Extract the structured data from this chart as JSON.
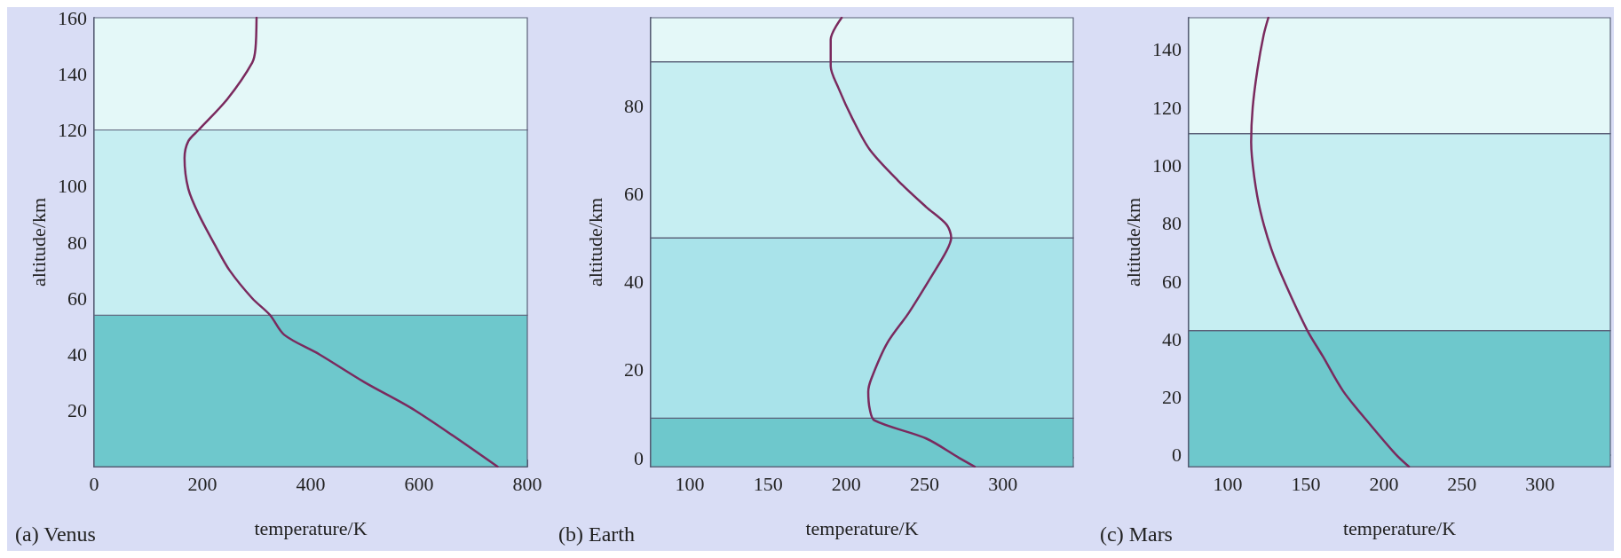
{
  "chart_data": [
    {
      "type": "line",
      "title": "(a) Venus",
      "xlabel": "temperature/K",
      "ylabel": "altitude/km",
      "xlim": [
        0,
        800
      ],
      "ylim": [
        0,
        160
      ],
      "xticks": [
        0,
        200,
        400,
        600,
        800
      ],
      "yticks": [
        20,
        40,
        60,
        80,
        100,
        120,
        140,
        160
      ],
      "bands": [
        {
          "axis": "y",
          "from": 0,
          "to": 54,
          "color": "#6ec8cc"
        },
        {
          "axis": "y",
          "from": 54,
          "to": 120,
          "color": "#c6eef2"
        },
        {
          "axis": "y",
          "from": 120,
          "to": 160,
          "color": "#e4f8f8"
        }
      ],
      "series": [
        {
          "color": "#7a2a5e",
          "x": [
            745,
            593,
            500,
            416,
            351,
            325,
            292,
            250,
            226,
            193,
            174,
            167,
            174,
            193,
            246,
            292,
            298,
            300
          ],
          "values": [
            0,
            20,
            30,
            40,
            47,
            54,
            60,
            70,
            78,
            90,
            99,
            110,
            116,
            120,
            131,
            144,
            149,
            160
          ]
        }
      ]
    },
    {
      "type": "line",
      "title": "(b) Earth",
      "xlabel": "temperature/K",
      "ylabel": "altitude/km",
      "xlim": [
        75,
        345
      ],
      "ylim": [
        -2,
        100
      ],
      "xticks": [
        100,
        150,
        200,
        250,
        300
      ],
      "yticks": [
        0,
        20,
        40,
        60,
        80
      ],
      "bands": [
        {
          "axis": "y",
          "from": -2,
          "to": 9,
          "color": "#6ec8cc"
        },
        {
          "axis": "y",
          "from": 9,
          "to": 50,
          "color": "#a9e3ea"
        },
        {
          "axis": "y",
          "from": 50,
          "to": 90,
          "color": "#c6eef2"
        },
        {
          "axis": "y",
          "from": 90,
          "to": 100,
          "color": "#e4f8f8"
        }
      ],
      "series": [
        {
          "color": "#7a2a5e",
          "x": [
            282,
            272,
            251,
            218,
            215,
            214,
            216,
            226,
            240,
            254,
            264,
            267,
            264,
            251,
            233,
            215,
            204,
            195,
            190,
            190,
            197
          ],
          "values": [
            -2,
            0,
            4.4,
            8.5,
            11,
            15,
            18,
            26,
            33,
            41,
            47,
            50,
            53,
            57,
            63,
            70,
            77,
            84,
            89,
            95,
            100
          ]
        }
      ]
    },
    {
      "type": "line",
      "title": "(c) Mars",
      "xlabel": "temperature/K",
      "ylabel": "altitude/km",
      "xlim": [
        75,
        345
      ],
      "ylim": [
        -4,
        151
      ],
      "xticks": [
        100,
        150,
        200,
        250,
        300
      ],
      "yticks": [
        0,
        20,
        40,
        60,
        80,
        100,
        120,
        140
      ],
      "bands": [
        {
          "axis": "y",
          "from": -4,
          "to": 43,
          "color": "#6ec8cc"
        },
        {
          "axis": "y",
          "from": 43,
          "to": 111,
          "color": "#c6eef2"
        },
        {
          "axis": "y",
          "from": 111,
          "to": 151,
          "color": "#e4f8f8"
        }
      ],
      "series": [
        {
          "color": "#7a2a5e",
          "x": [
            216,
            208,
            192,
            174,
            161,
            151,
            137,
            128,
            121,
            117,
            115,
            116,
            119,
            123,
            126
          ],
          "values": [
            -4,
            0,
            10,
            22,
            34,
            43,
            59,
            71,
            84,
            96,
            108,
            120,
            133,
            145,
            151
          ]
        }
      ]
    }
  ]
}
